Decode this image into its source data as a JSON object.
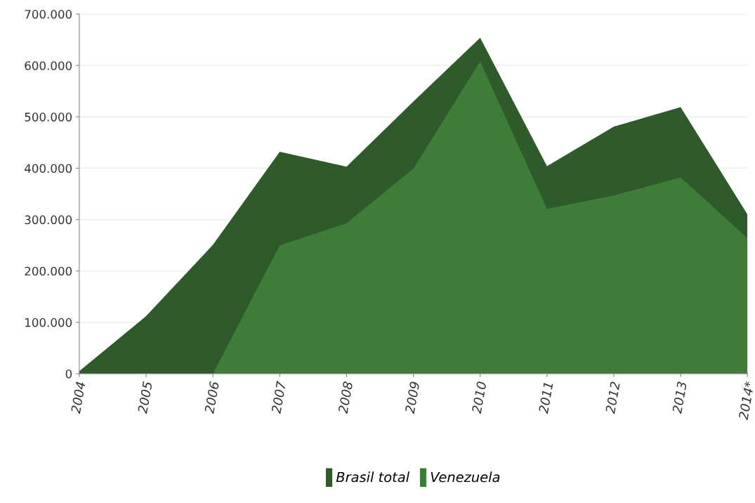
{
  "chart_data": {
    "type": "area",
    "categories": [
      "2004",
      "2005",
      "2006",
      "2007",
      "2008",
      "2009",
      "2010",
      "2011",
      "2012",
      "2013",
      "2014*"
    ],
    "series": [
      {
        "name": "Brasil total",
        "color": "#2f5a2b",
        "values": [
          5000,
          112000,
          251000,
          432000,
          403000,
          530000,
          654000,
          404000,
          481000,
          519000,
          310000
        ]
      },
      {
        "name": "Venezuela",
        "color": "#3e7d38",
        "values": [
          0,
          0,
          0,
          250000,
          293000,
          399000,
          608000,
          321000,
          347000,
          382000,
          264000
        ]
      }
    ],
    "ylim": [
      0,
      700000
    ],
    "yticks": [
      {
        "value": 0,
        "label": "0"
      },
      {
        "value": 100000,
        "label": "100.000"
      },
      {
        "value": 200000,
        "label": "200.000"
      },
      {
        "value": 300000,
        "label": "300.000"
      },
      {
        "value": 400000,
        "label": "400.000"
      },
      {
        "value": 500000,
        "label": "500.000"
      },
      {
        "value": 600000,
        "label": "600.000"
      },
      {
        "value": 700000,
        "label": "700.000"
      }
    ],
    "grid": "y",
    "legend": "bottom"
  }
}
